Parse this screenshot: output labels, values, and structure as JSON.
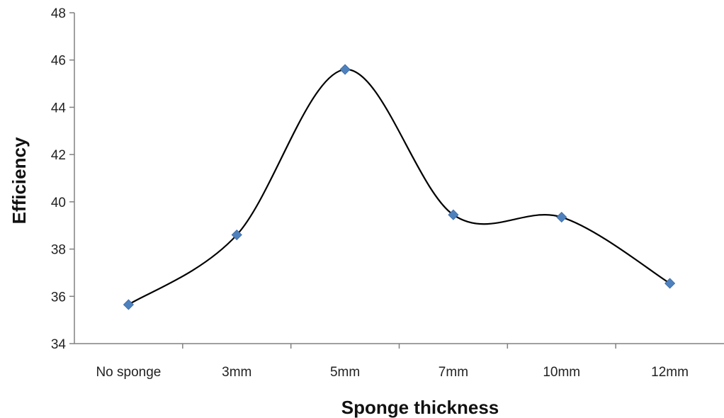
{
  "chart_data": {
    "type": "line",
    "title": "",
    "xlabel": "Sponge thickness",
    "ylabel": "Efficiency",
    "categories": [
      "No sponge",
      "3mm",
      "5mm",
      "7mm",
      "10mm",
      "12mm"
    ],
    "series": [
      {
        "values": [
          35.65,
          38.6,
          45.6,
          39.45,
          39.35,
          36.55
        ],
        "color": "#4f81bd",
        "line_color": "#000000",
        "marker": "diamond",
        "smooth": true
      }
    ],
    "ylim": [
      34,
      48
    ],
    "yticks": [
      "34",
      "36",
      "38",
      "40",
      "42",
      "44",
      "46",
      "48"
    ],
    "grid": false,
    "legend": "none"
  }
}
